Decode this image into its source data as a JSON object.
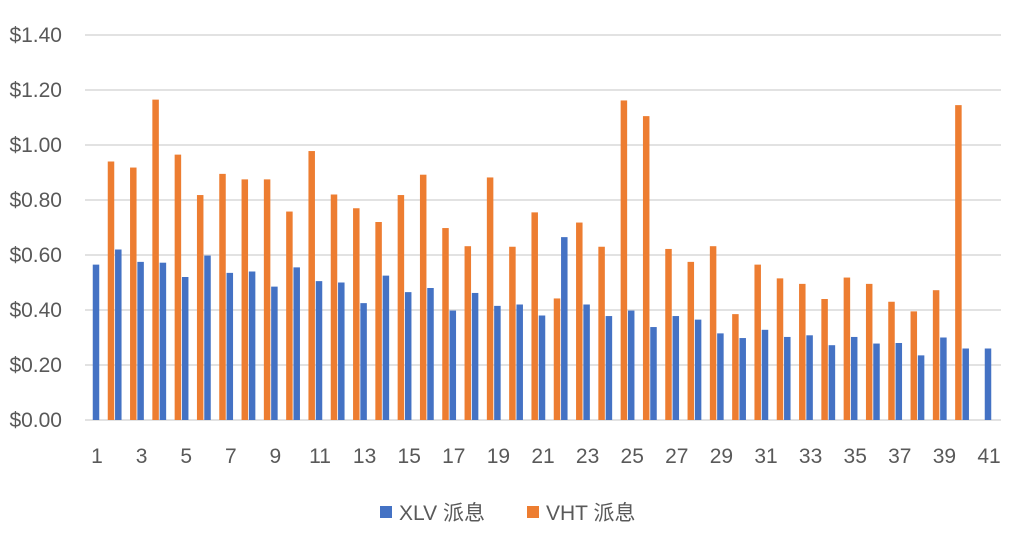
{
  "chart_data": {
    "type": "bar",
    "categories": [
      "1",
      "2",
      "3",
      "4",
      "5",
      "6",
      "7",
      "8",
      "9",
      "10",
      "11",
      "12",
      "13",
      "14",
      "15",
      "16",
      "17",
      "18",
      "19",
      "20",
      "21",
      "22",
      "23",
      "24",
      "25",
      "26",
      "27",
      "28",
      "29",
      "30",
      "31",
      "32",
      "33",
      "34",
      "35",
      "36",
      "37",
      "38",
      "39",
      "40",
      "41"
    ],
    "x_tick_labels": [
      "1",
      "3",
      "5",
      "7",
      "9",
      "11",
      "13",
      "15",
      "17",
      "19",
      "21",
      "23",
      "25",
      "27",
      "29",
      "31",
      "33",
      "35",
      "37",
      "39",
      "41"
    ],
    "series": [
      {
        "name": "XLV 派息",
        "color": "#4472C4",
        "values": [
          0.565,
          0.62,
          0.575,
          0.572,
          0.52,
          0.598,
          0.535,
          0.54,
          0.485,
          0.555,
          0.505,
          0.5,
          0.425,
          0.525,
          0.465,
          0.48,
          0.398,
          0.462,
          0.415,
          0.42,
          0.38,
          0.665,
          0.42,
          0.378,
          0.398,
          0.338,
          0.378,
          0.365,
          0.315,
          0.298,
          0.328,
          0.302,
          0.308,
          0.272,
          0.302,
          0.278,
          0.28,
          0.235,
          0.3,
          0.26,
          0.26
        ]
      },
      {
        "name": "VHT 派息",
        "color": "#ED7D31",
        "values": [
          0.94,
          0.918,
          1.165,
          0.965,
          0.818,
          0.895,
          0.875,
          0.875,
          0.758,
          0.978,
          0.82,
          0.77,
          0.72,
          0.818,
          0.892,
          0.698,
          0.632,
          0.882,
          0.63,
          0.755,
          0.442,
          0.718,
          0.63,
          1.162,
          1.105,
          0.622,
          0.575,
          0.632,
          0.385,
          0.565,
          0.515,
          0.495,
          0.44,
          0.518,
          0.495,
          0.43,
          0.395,
          0.472,
          1.145,
          null,
          null
        ]
      }
    ],
    "y_tick_labels": [
      "$0.00",
      "$0.20",
      "$0.40",
      "$0.60",
      "$0.80",
      "$1.00",
      "$1.20",
      "$1.40"
    ],
    "ylim": [
      0,
      1.4
    ],
    "ystep": 0.2,
    "grid": true,
    "legend": "bottom",
    "colors": {
      "gridline": "#D9D9D9",
      "axis": "#D9D9D9",
      "text": "#595959"
    }
  }
}
